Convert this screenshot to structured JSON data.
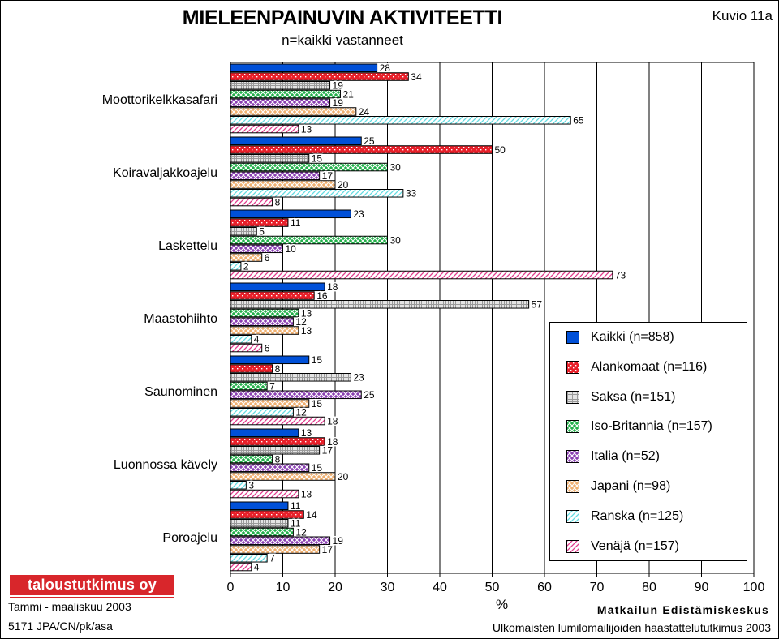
{
  "header": {
    "title": "MIELEENPAINUVIN AKTIVITEETTI",
    "subtitle": "n=kaikki vastanneet",
    "figure_number": "Kuvio 11a"
  },
  "footer": {
    "logo_text": "taloustutkimus oy",
    "date": "Tammi - maaliskuu 2003",
    "code": "5171 JPA/CN/pk/asa",
    "org": "Matkailun Edistämiskeskus",
    "survey": "Ulkomaisten lumilomailijoiden haastattelututkimus 2003"
  },
  "colors": {
    "Kaikki": "#0050d8",
    "Alankomaat": "#e8202a",
    "Saksa": "#9a9a9a",
    "Iso-Britannia": "#22b04a",
    "Italia": "#8a3fb2",
    "Japani": "#f0b070",
    "Ranska": "#62dce2",
    "Venäjä": "#e23a8c"
  },
  "chart_data": {
    "type": "bar",
    "orientation": "horizontal",
    "title": "MIELEENPAINUVIN AKTIVITEETTI",
    "subtitle": "n=kaikki vastanneet",
    "xlabel": "%",
    "ylabel": "",
    "xlim": [
      0,
      100
    ],
    "xticks": [
      0,
      10,
      20,
      30,
      40,
      50,
      60,
      70,
      80,
      90,
      100
    ],
    "grid": "vertical",
    "legend_position": "right",
    "categories": [
      "Moottorikelkkasafari",
      "Koiravaljakkoajelu",
      "Laskettelu",
      "Maastohiihto",
      "Saunominen",
      "Luonnossa kävely",
      "Poroajelu"
    ],
    "series": [
      {
        "name": "Kaikki (n=858)",
        "key": "Kaikki",
        "pattern": "solid",
        "values": [
          28,
          25,
          23,
          18,
          15,
          13,
          11
        ]
      },
      {
        "name": "Alankomaat (n=116)",
        "key": "Alankomaat",
        "pattern": "dots",
        "values": [
          34,
          50,
          11,
          16,
          8,
          18,
          14
        ]
      },
      {
        "name": "Saksa (n=151)",
        "key": "Saksa",
        "pattern": "grid",
        "values": [
          19,
          15,
          5,
          57,
          23,
          17,
          11
        ]
      },
      {
        "name": "Iso-Britannia (n=157)",
        "key": "Iso-Britannia",
        "pattern": "cross",
        "values": [
          21,
          30,
          30,
          13,
          7,
          8,
          12
        ]
      },
      {
        "name": "Italia (n=52)",
        "key": "Italia",
        "pattern": "cross",
        "values": [
          19,
          17,
          10,
          12,
          25,
          15,
          19
        ]
      },
      {
        "name": "Japani (n=98)",
        "key": "Japani",
        "pattern": "cross",
        "values": [
          24,
          20,
          6,
          13,
          15,
          20,
          17
        ]
      },
      {
        "name": "Ranska (n=125)",
        "key": "Ranska",
        "pattern": "hatch",
        "values": [
          65,
          33,
          2,
          4,
          12,
          3,
          7
        ]
      },
      {
        "name": "Venäjä (n=157)",
        "key": "Venäjä",
        "pattern": "hatch",
        "values": [
          13,
          8,
          73,
          6,
          18,
          13,
          4
        ]
      }
    ]
  }
}
